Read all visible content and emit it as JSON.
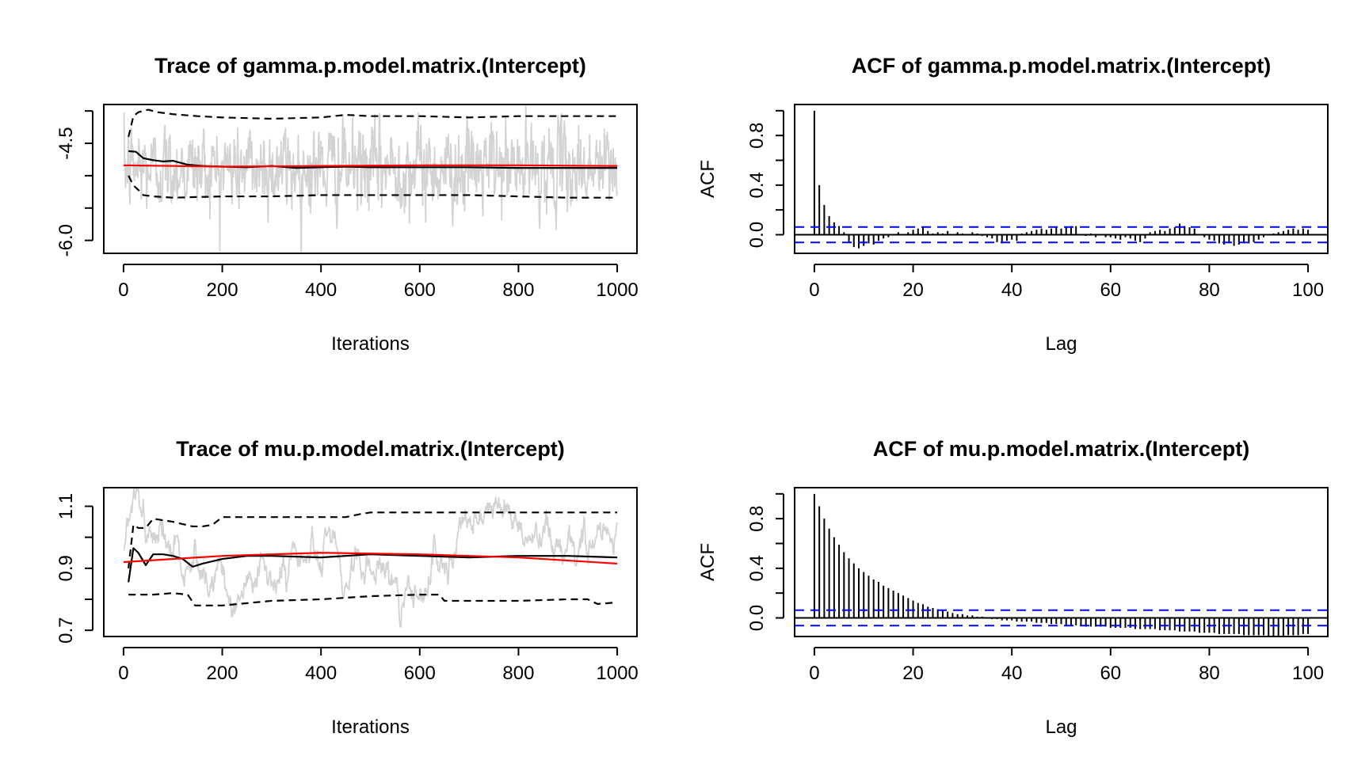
{
  "chart_data": [
    {
      "type": "line",
      "title": "Trace of gamma.p.model.matrix.(Intercept)",
      "xlabel": "Iterations",
      "ylabel": "",
      "xlim": [
        -40,
        1040
      ],
      "ylim": [
        -6.2,
        -3.9
      ],
      "xticks": [
        "0",
        "200",
        "400",
        "600",
        "800",
        "1000"
      ],
      "yticks": [
        "-6.0",
        "-4.5"
      ],
      "ytick_values": [
        -6.0,
        -5.5,
        -5.0,
        -4.5,
        -4.0
      ],
      "ytick_labels_shown": [
        "-6.0",
        "-4.5"
      ],
      "grid": false,
      "legend": "none",
      "series": [
        {
          "role": "chain",
          "color": "#d3d3d3",
          "generator": {
            "n": 1000,
            "mean": -4.88,
            "sd": 0.33,
            "ar": 0.35
          }
        },
        {
          "role": "running-mean",
          "color": "#000000",
          "x": [
            10,
            25,
            40,
            60,
            80,
            100,
            130,
            160,
            200,
            250,
            300,
            350,
            400,
            450,
            500,
            600,
            700,
            800,
            900,
            1000
          ],
          "y": [
            -4.62,
            -4.63,
            -4.73,
            -4.76,
            -4.78,
            -4.77,
            -4.83,
            -4.85,
            -4.86,
            -4.87,
            -4.85,
            -4.88,
            -4.87,
            -4.86,
            -4.87,
            -4.87,
            -4.87,
            -4.88,
            -4.88,
            -4.88
          ]
        },
        {
          "role": "upper-quantile",
          "color": "#000000",
          "dash": true,
          "x": [
            10,
            20,
            30,
            50,
            70,
            100,
            150,
            200,
            300,
            400,
            450,
            500,
            600,
            700,
            800,
            900,
            1000
          ],
          "y": [
            -4.4,
            -4.08,
            -4.02,
            -3.98,
            -4.02,
            -4.05,
            -4.08,
            -4.1,
            -4.12,
            -4.1,
            -4.06,
            -4.08,
            -4.08,
            -4.1,
            -4.08,
            -4.08,
            -4.08
          ]
        },
        {
          "role": "lower-quantile",
          "color": "#000000",
          "dash": true,
          "x": [
            10,
            20,
            30,
            40,
            60,
            100,
            200,
            300,
            400,
            500,
            600,
            700,
            800,
            900,
            1000
          ],
          "y": [
            -5.0,
            -5.15,
            -5.22,
            -5.3,
            -5.32,
            -5.34,
            -5.32,
            -5.32,
            -5.3,
            -5.3,
            -5.3,
            -5.3,
            -5.32,
            -5.34,
            -5.34
          ]
        },
        {
          "role": "smooth",
          "color": "#ff0000",
          "x": [
            0,
            200,
            400,
            600,
            800,
            1000
          ],
          "y": [
            -4.84,
            -4.86,
            -4.85,
            -4.84,
            -4.84,
            -4.85
          ]
        }
      ]
    },
    {
      "type": "bar",
      "title": "ACF of gamma.p.model.matrix.(Intercept)",
      "xlabel": "Lag",
      "ylabel": "ACF",
      "xlim": [
        -4,
        104
      ],
      "ylim": [
        -0.15,
        1.05
      ],
      "xticks": [
        "0",
        "20",
        "40",
        "60",
        "80",
        "100"
      ],
      "yticks": [
        "0.0",
        "0.4",
        "0.8"
      ],
      "ytick_values": [
        0.0,
        0.2,
        0.4,
        0.6,
        0.8,
        1.0
      ],
      "ytick_labels_shown": [
        "0.0",
        "0.4",
        "0.8"
      ],
      "grid": false,
      "legend": "none",
      "confidence_band": 0.062,
      "band_color": "#0000ff",
      "lags": [
        0,
        1,
        2,
        3,
        4,
        5,
        6,
        7,
        8,
        9,
        10,
        11,
        12,
        13,
        14,
        15,
        16,
        17,
        18,
        19,
        20,
        21,
        22,
        23,
        24,
        25,
        26,
        27,
        28,
        29,
        30,
        31,
        32,
        33,
        34,
        35,
        36,
        37,
        38,
        39,
        40,
        41,
        42,
        43,
        44,
        45,
        46,
        47,
        48,
        49,
        50,
        51,
        52,
        53,
        54,
        55,
        56,
        57,
        58,
        59,
        60,
        61,
        62,
        63,
        64,
        65,
        66,
        67,
        68,
        69,
        70,
        71,
        72,
        73,
        74,
        75,
        76,
        77,
        78,
        79,
        80,
        81,
        82,
        83,
        84,
        85,
        86,
        87,
        88,
        89,
        90,
        91,
        92,
        93,
        94,
        95,
        96,
        97,
        98,
        99,
        100
      ],
      "values": [
        1.0,
        0.4,
        0.24,
        0.15,
        0.1,
        0.07,
        0.02,
        -0.06,
        -0.1,
        -0.11,
        -0.09,
        -0.07,
        -0.08,
        -0.05,
        -0.03,
        -0.02,
        0.0,
        0.02,
        0.0,
        0.02,
        0.04,
        0.05,
        0.06,
        0.03,
        0.01,
        0.02,
        0.01,
        0.03,
        0.0,
        0.02,
        0.01,
        0.0,
        0.02,
        0.01,
        -0.01,
        -0.02,
        -0.03,
        -0.06,
        -0.07,
        -0.05,
        -0.04,
        -0.05,
        0.01,
        0.02,
        0.03,
        0.04,
        0.05,
        0.04,
        0.05,
        0.06,
        0.05,
        0.06,
        0.07,
        0.07,
        0.0,
        -0.01,
        0.01,
        -0.02,
        0.0,
        -0.02,
        -0.02,
        -0.03,
        -0.04,
        -0.02,
        -0.03,
        -0.05,
        -0.06,
        -0.03,
        0.02,
        0.03,
        0.04,
        0.03,
        0.05,
        0.06,
        0.09,
        0.07,
        0.06,
        0.05,
        0.0,
        -0.02,
        -0.04,
        -0.05,
        -0.07,
        -0.08,
        -0.07,
        -0.09,
        -0.08,
        -0.07,
        -0.07,
        -0.06,
        -0.04,
        -0.02,
        0.0,
        0.01,
        0.02,
        0.03,
        0.04,
        0.05,
        0.04,
        0.05,
        0.04
      ]
    },
    {
      "type": "line",
      "title": "Trace of mu.p.model.matrix.(Intercept)",
      "xlabel": "Iterations",
      "ylabel": "",
      "xlim": [
        -40,
        1040
      ],
      "ylim": [
        0.68,
        1.16
      ],
      "xticks": [
        "0",
        "200",
        "400",
        "600",
        "800",
        "1000"
      ],
      "yticks": [
        "0.7",
        "0.9",
        "1.1"
      ],
      "ytick_values": [
        0.7,
        0.8,
        0.9,
        1.0,
        1.1
      ],
      "ytick_labels_shown": [
        "0.7",
        "0.9",
        "1.1"
      ],
      "grid": false,
      "legend": "none",
      "series": [
        {
          "role": "chain",
          "color": "#d3d3d3",
          "generator": {
            "n": 1000,
            "mean": 0.94,
            "sd": 0.075,
            "ar": 0.97
          }
        },
        {
          "role": "running-mean",
          "color": "#000000",
          "x": [
            10,
            20,
            30,
            45,
            60,
            80,
            100,
            120,
            140,
            160,
            200,
            250,
            300,
            400,
            500,
            600,
            700,
            800,
            900,
            1000
          ],
          "y": [
            0.855,
            0.965,
            0.95,
            0.91,
            0.945,
            0.945,
            0.94,
            0.93,
            0.905,
            0.915,
            0.93,
            0.94,
            0.94,
            0.935,
            0.945,
            0.94,
            0.935,
            0.94,
            0.94,
            0.935
          ]
        },
        {
          "role": "upper-quantile",
          "color": "#000000",
          "dash": true,
          "x": [
            10,
            20,
            30,
            45,
            60,
            80,
            100,
            140,
            160,
            180,
            200,
            300,
            400,
            450,
            480,
            500,
            600,
            700,
            800,
            900,
            1000
          ],
          "y": [
            0.9,
            1.04,
            1.03,
            1.03,
            1.06,
            1.055,
            1.05,
            1.035,
            1.035,
            1.04,
            1.065,
            1.065,
            1.065,
            1.065,
            1.075,
            1.08,
            1.08,
            1.08,
            1.08,
            1.08,
            1.08
          ]
        },
        {
          "role": "lower-quantile",
          "color": "#000000",
          "dash": true,
          "x": [
            10,
            60,
            100,
            130,
            145,
            200,
            300,
            400,
            500,
            600,
            640,
            650,
            700,
            800,
            900,
            940,
            960,
            1000
          ],
          "y": [
            0.815,
            0.815,
            0.82,
            0.815,
            0.78,
            0.78,
            0.795,
            0.8,
            0.81,
            0.815,
            0.815,
            0.795,
            0.795,
            0.795,
            0.8,
            0.8,
            0.785,
            0.79
          ]
        },
        {
          "role": "smooth",
          "color": "#ff0000",
          "x": [
            0,
            200,
            400,
            600,
            800,
            1000
          ],
          "y": [
            0.92,
            0.94,
            0.95,
            0.945,
            0.935,
            0.915
          ]
        }
      ]
    },
    {
      "type": "bar",
      "title": "ACF of mu.p.model.matrix.(Intercept)",
      "xlabel": "Lag",
      "ylabel": "ACF",
      "xlim": [
        -4,
        104
      ],
      "ylim": [
        -0.15,
        1.05
      ],
      "xticks": [
        "0",
        "20",
        "40",
        "60",
        "80",
        "100"
      ],
      "yticks": [
        "0.0",
        "0.4",
        "0.8"
      ],
      "ytick_values": [
        0.0,
        0.2,
        0.4,
        0.6,
        0.8,
        1.0
      ],
      "ytick_labels_shown": [
        "0.0",
        "0.4",
        "0.8"
      ],
      "grid": false,
      "legend": "none",
      "confidence_band": 0.062,
      "band_color": "#0000ff",
      "lags": [
        0,
        1,
        2,
        3,
        4,
        5,
        6,
        7,
        8,
        9,
        10,
        11,
        12,
        13,
        14,
        15,
        16,
        17,
        18,
        19,
        20,
        21,
        22,
        23,
        24,
        25,
        26,
        27,
        28,
        29,
        30,
        31,
        32,
        33,
        34,
        35,
        36,
        37,
        38,
        39,
        40,
        41,
        42,
        43,
        44,
        45,
        46,
        47,
        48,
        49,
        50,
        51,
        52,
        53,
        54,
        55,
        56,
        57,
        58,
        59,
        60,
        61,
        62,
        63,
        64,
        65,
        66,
        67,
        68,
        69,
        70,
        71,
        72,
        73,
        74,
        75,
        76,
        77,
        78,
        79,
        80,
        81,
        82,
        83,
        84,
        85,
        86,
        87,
        88,
        89,
        90,
        91,
        92,
        93,
        94,
        95,
        96,
        97,
        98,
        99,
        100
      ],
      "values": [
        1.0,
        0.9,
        0.8,
        0.72,
        0.65,
        0.59,
        0.53,
        0.48,
        0.44,
        0.4,
        0.37,
        0.34,
        0.31,
        0.29,
        0.26,
        0.24,
        0.22,
        0.2,
        0.18,
        0.16,
        0.14,
        0.12,
        0.11,
        0.09,
        0.08,
        0.07,
        0.06,
        0.05,
        0.04,
        0.03,
        0.03,
        0.02,
        0.02,
        0.01,
        0.01,
        0.0,
        -0.01,
        -0.01,
        -0.02,
        -0.02,
        -0.02,
        -0.03,
        -0.03,
        -0.03,
        -0.03,
        -0.04,
        -0.04,
        -0.04,
        -0.05,
        -0.05,
        -0.05,
        -0.06,
        -0.06,
        -0.06,
        -0.06,
        -0.07,
        -0.07,
        -0.07,
        -0.07,
        -0.07,
        -0.08,
        -0.08,
        -0.08,
        -0.08,
        -0.08,
        -0.09,
        -0.09,
        -0.09,
        -0.09,
        -0.09,
        -0.1,
        -0.1,
        -0.1,
        -0.1,
        -0.11,
        -0.11,
        -0.11,
        -0.11,
        -0.12,
        -0.12,
        -0.12,
        -0.12,
        -0.13,
        -0.13,
        -0.13,
        -0.13,
        -0.13,
        -0.14,
        -0.14,
        -0.14,
        -0.14,
        -0.14,
        -0.15,
        -0.15,
        -0.15,
        -0.15,
        -0.14,
        -0.14,
        -0.14,
        -0.13,
        -0.13
      ]
    }
  ]
}
